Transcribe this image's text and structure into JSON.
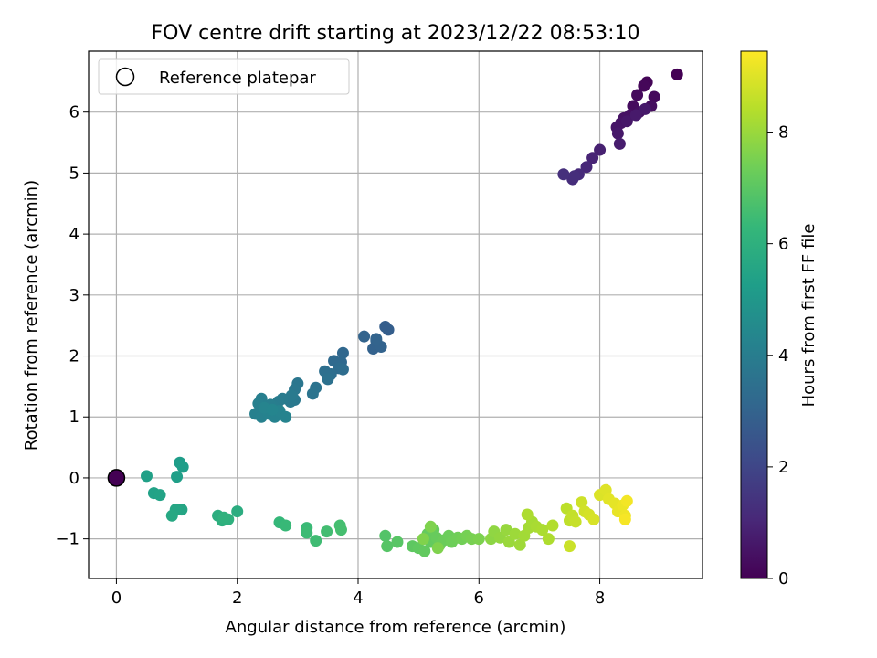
{
  "chart_data": {
    "type": "scatter",
    "title": "FOV centre drift starting at 2023/12/22 08:53:10",
    "xlabel": "Angular distance from reference (arcmin)",
    "ylabel": "Rotation from reference (arcmin)",
    "xlim": [
      -0.46,
      9.7
    ],
    "ylim": [
      -1.65,
      7.0
    ],
    "x_ticks": [
      0,
      2,
      4,
      6,
      8
    ],
    "y_ticks": [
      -1,
      0,
      1,
      2,
      3,
      4,
      5,
      6
    ],
    "x_tick_labels": [
      "0",
      "2",
      "4",
      "6",
      "8"
    ],
    "y_tick_labels": [
      "−1",
      "0",
      "1",
      "2",
      "3",
      "4",
      "5",
      "6"
    ],
    "grid": true,
    "legend": {
      "position": "top-left",
      "entries": [
        "Reference platepar"
      ]
    },
    "colorbar": {
      "label": "Hours from first FF file",
      "range": [
        0,
        9.45
      ],
      "ticks": [
        0,
        2,
        4,
        6,
        8
      ],
      "tick_labels": [
        "0",
        "2",
        "4",
        "6",
        "8"
      ],
      "colormap": "viridis"
    },
    "reference_point": {
      "x": 0,
      "y": 0
    },
    "points": [
      {
        "x": 9.28,
        "y": 6.62,
        "t": 0.0
      },
      {
        "x": 8.78,
        "y": 6.49,
        "t": 0.1
      },
      {
        "x": 8.73,
        "y": 6.43,
        "t": 0.15
      },
      {
        "x": 8.9,
        "y": 6.25,
        "t": 0.2
      },
      {
        "x": 8.62,
        "y": 6.28,
        "t": 0.25
      },
      {
        "x": 8.55,
        "y": 6.1,
        "t": 0.3
      },
      {
        "x": 8.85,
        "y": 6.1,
        "t": 0.33
      },
      {
        "x": 8.65,
        "y": 6.0,
        "t": 0.38
      },
      {
        "x": 8.5,
        "y": 5.95,
        "t": 0.42
      },
      {
        "x": 8.4,
        "y": 5.9,
        "t": 0.45
      },
      {
        "x": 8.35,
        "y": 5.82,
        "t": 0.5
      },
      {
        "x": 8.28,
        "y": 5.75,
        "t": 0.55
      },
      {
        "x": 8.45,
        "y": 5.85,
        "t": 0.58
      },
      {
        "x": 8.3,
        "y": 5.65,
        "t": 0.62
      },
      {
        "x": 8.75,
        "y": 6.05,
        "t": 0.65
      },
      {
        "x": 8.6,
        "y": 5.95,
        "t": 0.68
      },
      {
        "x": 8.33,
        "y": 5.48,
        "t": 0.72
      },
      {
        "x": 8.0,
        "y": 5.38,
        "t": 0.85
      },
      {
        "x": 7.88,
        "y": 5.25,
        "t": 0.95
      },
      {
        "x": 7.78,
        "y": 5.1,
        "t": 1.05
      },
      {
        "x": 7.65,
        "y": 4.98,
        "t": 1.15
      },
      {
        "x": 7.55,
        "y": 4.9,
        "t": 1.22
      },
      {
        "x": 7.58,
        "y": 4.95,
        "t": 1.25
      },
      {
        "x": 7.4,
        "y": 4.98,
        "t": 1.3
      },
      {
        "x": 4.45,
        "y": 2.48,
        "t": 2.8
      },
      {
        "x": 4.5,
        "y": 2.43,
        "t": 2.82
      },
      {
        "x": 4.3,
        "y": 2.25,
        "t": 2.9
      },
      {
        "x": 4.25,
        "y": 2.12,
        "t": 2.95
      },
      {
        "x": 4.38,
        "y": 2.15,
        "t": 2.98
      },
      {
        "x": 4.1,
        "y": 2.32,
        "t": 3.0
      },
      {
        "x": 4.3,
        "y": 2.28,
        "t": 3.02
      },
      {
        "x": 3.75,
        "y": 2.05,
        "t": 3.15
      },
      {
        "x": 3.72,
        "y": 1.9,
        "t": 3.2
      },
      {
        "x": 3.6,
        "y": 1.92,
        "t": 3.25
      },
      {
        "x": 3.68,
        "y": 1.8,
        "t": 3.3
      },
      {
        "x": 3.75,
        "y": 1.78,
        "t": 3.35
      },
      {
        "x": 3.55,
        "y": 1.7,
        "t": 3.4
      },
      {
        "x": 3.45,
        "y": 1.75,
        "t": 3.45
      },
      {
        "x": 3.5,
        "y": 1.62,
        "t": 3.5
      },
      {
        "x": 3.3,
        "y": 1.48,
        "t": 3.6
      },
      {
        "x": 3.25,
        "y": 1.38,
        "t": 3.65
      },
      {
        "x": 3.0,
        "y": 1.55,
        "t": 3.7
      },
      {
        "x": 2.95,
        "y": 1.45,
        "t": 3.75
      },
      {
        "x": 2.95,
        "y": 1.28,
        "t": 3.8
      },
      {
        "x": 2.88,
        "y": 1.25,
        "t": 3.85
      },
      {
        "x": 2.9,
        "y": 1.35,
        "t": 3.88
      },
      {
        "x": 2.75,
        "y": 1.3,
        "t": 3.92
      },
      {
        "x": 2.68,
        "y": 1.25,
        "t": 3.95
      },
      {
        "x": 2.6,
        "y": 1.18,
        "t": 4.0
      },
      {
        "x": 2.55,
        "y": 1.2,
        "t": 4.02
      },
      {
        "x": 2.48,
        "y": 1.1,
        "t": 4.05
      },
      {
        "x": 2.4,
        "y": 1.3,
        "t": 4.08
      },
      {
        "x": 2.35,
        "y": 1.22,
        "t": 4.1
      },
      {
        "x": 2.3,
        "y": 1.05,
        "t": 4.12
      },
      {
        "x": 2.4,
        "y": 1.0,
        "t": 4.15
      },
      {
        "x": 2.52,
        "y": 1.05,
        "t": 4.18
      },
      {
        "x": 2.62,
        "y": 1.0,
        "t": 4.2
      },
      {
        "x": 2.7,
        "y": 1.1,
        "t": 4.22
      },
      {
        "x": 2.8,
        "y": 1.0,
        "t": 4.25
      },
      {
        "x": 2.45,
        "y": 1.15,
        "t": 4.27
      },
      {
        "x": 2.58,
        "y": 1.12,
        "t": 4.3
      },
      {
        "x": 1.05,
        "y": 0.25,
        "t": 5.2
      },
      {
        "x": 1.1,
        "y": 0.18,
        "t": 5.25
      },
      {
        "x": 1.0,
        "y": 0.02,
        "t": 5.3
      },
      {
        "x": 0.5,
        "y": 0.03,
        "t": 5.35
      },
      {
        "x": 0.62,
        "y": -0.25,
        "t": 5.4
      },
      {
        "x": 0.72,
        "y": -0.28,
        "t": 5.45
      },
      {
        "x": 1.08,
        "y": -0.52,
        "t": 5.55
      },
      {
        "x": 0.98,
        "y": -0.52,
        "t": 5.6
      },
      {
        "x": 0.92,
        "y": -0.62,
        "t": 5.65
      },
      {
        "x": 2.0,
        "y": -0.55,
        "t": 5.85
      },
      {
        "x": 1.68,
        "y": -0.62,
        "t": 5.9
      },
      {
        "x": 1.75,
        "y": -0.7,
        "t": 5.95
      },
      {
        "x": 1.85,
        "y": -0.68,
        "t": 6.0
      },
      {
        "x": 1.78,
        "y": -0.65,
        "t": 6.05
      },
      {
        "x": 2.7,
        "y": -0.73,
        "t": 6.3
      },
      {
        "x": 2.8,
        "y": -0.78,
        "t": 6.35
      },
      {
        "x": 3.15,
        "y": -0.82,
        "t": 6.4
      },
      {
        "x": 3.15,
        "y": -0.9,
        "t": 6.45
      },
      {
        "x": 3.3,
        "y": -1.03,
        "t": 6.5
      },
      {
        "x": 3.48,
        "y": -0.88,
        "t": 6.55
      },
      {
        "x": 3.7,
        "y": -0.78,
        "t": 6.6
      },
      {
        "x": 3.72,
        "y": -0.85,
        "t": 6.62
      },
      {
        "x": 4.45,
        "y": -0.95,
        "t": 6.85
      },
      {
        "x": 4.48,
        "y": -1.12,
        "t": 6.9
      },
      {
        "x": 4.65,
        "y": -1.05,
        "t": 6.95
      },
      {
        "x": 4.9,
        "y": -1.12,
        "t": 7.05
      },
      {
        "x": 5.0,
        "y": -1.15,
        "t": 7.1
      },
      {
        "x": 5.1,
        "y": -1.2,
        "t": 7.12
      },
      {
        "x": 5.2,
        "y": -1.05,
        "t": 7.15
      },
      {
        "x": 5.15,
        "y": -0.92,
        "t": 7.18
      },
      {
        "x": 5.25,
        "y": -0.85,
        "t": 7.2
      },
      {
        "x": 5.3,
        "y": -0.98,
        "t": 7.22
      },
      {
        "x": 5.35,
        "y": -1.1,
        "t": 7.25
      },
      {
        "x": 5.42,
        "y": -1.02,
        "t": 7.28
      },
      {
        "x": 5.5,
        "y": -0.95,
        "t": 7.3
      },
      {
        "x": 5.55,
        "y": -1.05,
        "t": 7.33
      },
      {
        "x": 5.65,
        "y": -0.98,
        "t": 7.36
      },
      {
        "x": 5.72,
        "y": -1.0,
        "t": 7.4
      },
      {
        "x": 5.8,
        "y": -0.95,
        "t": 7.45
      },
      {
        "x": 5.88,
        "y": -1.0,
        "t": 7.5
      },
      {
        "x": 6.0,
        "y": -1.0,
        "t": 7.55
      },
      {
        "x": 5.2,
        "y": -0.8,
        "t": 7.58
      },
      {
        "x": 5.32,
        "y": -1.15,
        "t": 7.6
      },
      {
        "x": 5.08,
        "y": -1.0,
        "t": 7.62
      },
      {
        "x": 6.2,
        "y": -1.0,
        "t": 7.8
      },
      {
        "x": 6.25,
        "y": -0.88,
        "t": 7.85
      },
      {
        "x": 6.35,
        "y": -0.98,
        "t": 7.9
      },
      {
        "x": 6.45,
        "y": -0.85,
        "t": 7.95
      },
      {
        "x": 6.5,
        "y": -1.05,
        "t": 8.0
      },
      {
        "x": 6.6,
        "y": -0.92,
        "t": 8.05
      },
      {
        "x": 6.68,
        "y": -1.1,
        "t": 8.08
      },
      {
        "x": 6.75,
        "y": -0.95,
        "t": 8.12
      },
      {
        "x": 6.82,
        "y": -0.82,
        "t": 8.15
      },
      {
        "x": 6.88,
        "y": -0.72,
        "t": 8.18
      },
      {
        "x": 6.95,
        "y": -0.8,
        "t": 8.22
      },
      {
        "x": 7.05,
        "y": -0.85,
        "t": 8.25
      },
      {
        "x": 6.8,
        "y": -0.6,
        "t": 8.28
      },
      {
        "x": 7.15,
        "y": -1.0,
        "t": 8.3
      },
      {
        "x": 7.22,
        "y": -0.78,
        "t": 8.35
      },
      {
        "x": 7.45,
        "y": -0.5,
        "t": 8.5
      },
      {
        "x": 7.5,
        "y": -0.7,
        "t": 8.55
      },
      {
        "x": 7.55,
        "y": -0.62,
        "t": 8.6
      },
      {
        "x": 7.6,
        "y": -0.72,
        "t": 8.65
      },
      {
        "x": 7.5,
        "y": -1.12,
        "t": 8.7
      },
      {
        "x": 7.7,
        "y": -0.4,
        "t": 8.75
      },
      {
        "x": 7.75,
        "y": -0.55,
        "t": 8.8
      },
      {
        "x": 7.82,
        "y": -0.6,
        "t": 8.85
      },
      {
        "x": 7.9,
        "y": -0.68,
        "t": 8.9
      },
      {
        "x": 8.0,
        "y": -0.28,
        "t": 8.95
      },
      {
        "x": 8.1,
        "y": -0.2,
        "t": 9.0
      },
      {
        "x": 8.15,
        "y": -0.35,
        "t": 9.05
      },
      {
        "x": 8.25,
        "y": -0.42,
        "t": 9.1
      },
      {
        "x": 8.3,
        "y": -0.55,
        "t": 9.15
      },
      {
        "x": 8.38,
        "y": -0.45,
        "t": 9.2
      },
      {
        "x": 8.42,
        "y": -0.62,
        "t": 9.25
      },
      {
        "x": 8.45,
        "y": -0.38,
        "t": 9.3
      },
      {
        "x": 8.42,
        "y": -0.68,
        "t": 9.35
      }
    ]
  },
  "colors": {
    "viridis": [
      "#440154",
      "#482878",
      "#3e4989",
      "#31688e",
      "#26828e",
      "#1f9e89",
      "#35b779",
      "#6ece58",
      "#b5de2b",
      "#fde725"
    ]
  }
}
